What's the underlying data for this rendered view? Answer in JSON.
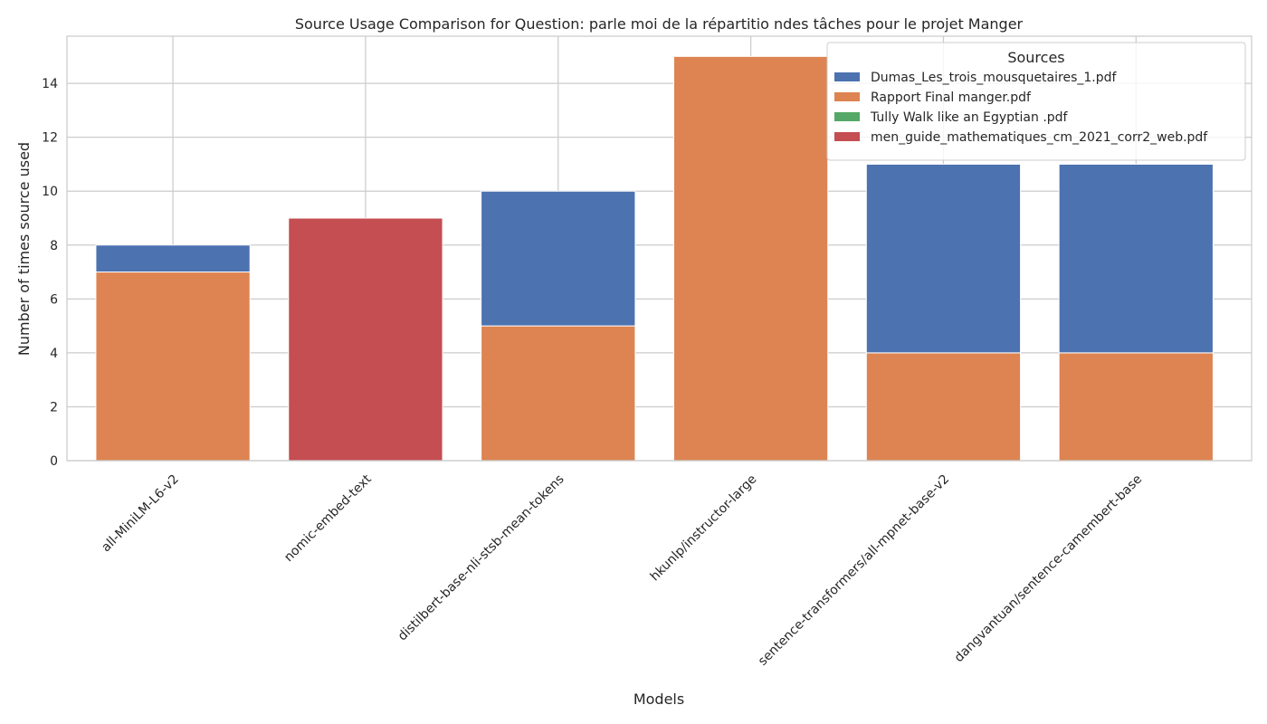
{
  "chart_data": {
    "type": "bar",
    "stacked": true,
    "title": "Source Usage Comparison for Question: parle moi de la répartitio ndes tâches pour le projet Manger",
    "xlabel": "Models",
    "ylabel": "Number of times source used",
    "categories": [
      "all-MiniLM-L6-v2",
      "nomic-embed-text",
      "distilbert-base-nli-stsb-mean-tokens",
      "hkunlp/instructor-large",
      "sentence-transformers/all-mpnet-base-v2",
      "dangvantuan/sentence-camembert-base"
    ],
    "series": [
      {
        "name": "Dumas_Les_trois_mousquetaires_1.pdf",
        "color": "#4c72b0",
        "values": [
          1,
          0,
          5,
          0,
          7,
          7
        ]
      },
      {
        "name": "Rapport Final manger.pdf",
        "color": "#dd8452",
        "values": [
          7,
          0,
          5,
          15,
          4,
          4
        ]
      },
      {
        "name": "Tully Walk like an Egyptian .pdf",
        "color": "#55a868",
        "values": [
          0,
          0,
          0,
          0,
          0,
          0
        ]
      },
      {
        "name": "men_guide_mathematiques_cm_2021_corr2_web.pdf",
        "color": "#c44e52",
        "values": [
          0,
          9,
          0,
          0,
          0,
          0
        ]
      }
    ],
    "stack_order": [
      "Rapport Final manger.pdf",
      "Dumas_Les_trois_mousquetaires_1.pdf",
      "Tully Walk like an Egyptian .pdf",
      "men_guide_mathematiques_cm_2021_corr2_web.pdf"
    ],
    "yticks": [
      0,
      2,
      4,
      6,
      8,
      10,
      12,
      14
    ],
    "ylim": [
      0,
      15.75
    ],
    "grid": true,
    "legend": {
      "title": "Sources",
      "position": "top-right"
    }
  }
}
